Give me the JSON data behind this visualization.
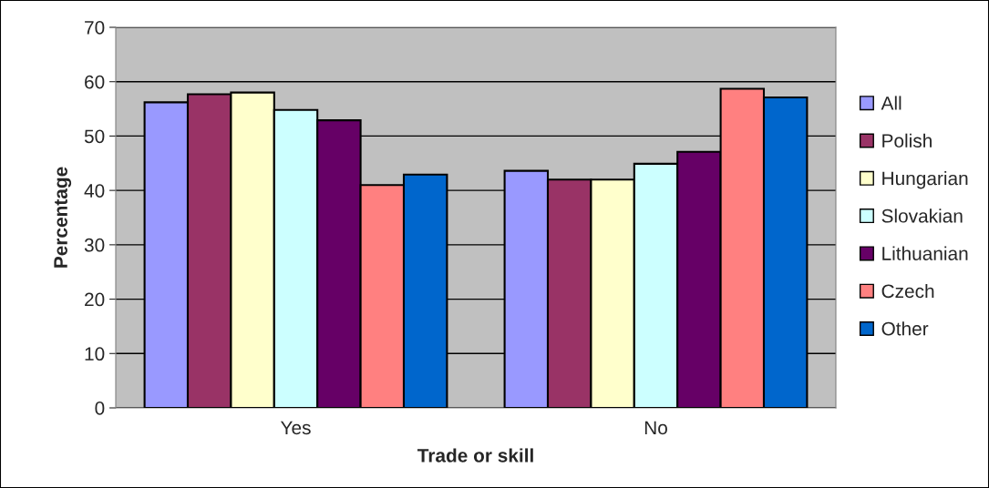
{
  "chart_data": {
    "type": "bar",
    "xlabel": "Trade or skill",
    "ylabel": "Percentage",
    "categories": [
      "Yes",
      "No"
    ],
    "series": [
      {
        "name": "All",
        "color": "#9999ff",
        "values": [
          56.2,
          43.6
        ]
      },
      {
        "name": "Polish",
        "color": "#993366",
        "values": [
          57.7,
          42.0
        ]
      },
      {
        "name": "Hungarian",
        "color": "#ffffcc",
        "values": [
          58.0,
          42.0
        ]
      },
      {
        "name": "Slovakian",
        "color": "#ccffff",
        "values": [
          54.8,
          44.9
        ]
      },
      {
        "name": "Lithuanian",
        "color": "#660066",
        "values": [
          52.9,
          47.1
        ]
      },
      {
        "name": "Czech",
        "color": "#ff8080",
        "values": [
          41.0,
          58.7
        ]
      },
      {
        "name": "Other",
        "color": "#0066cc",
        "values": [
          42.9,
          57.1
        ]
      }
    ],
    "ylim": [
      0,
      70
    ],
    "yticks": [
      0,
      10,
      20,
      30,
      40,
      50,
      60,
      70
    ],
    "grid": "y",
    "legend": "right"
  }
}
